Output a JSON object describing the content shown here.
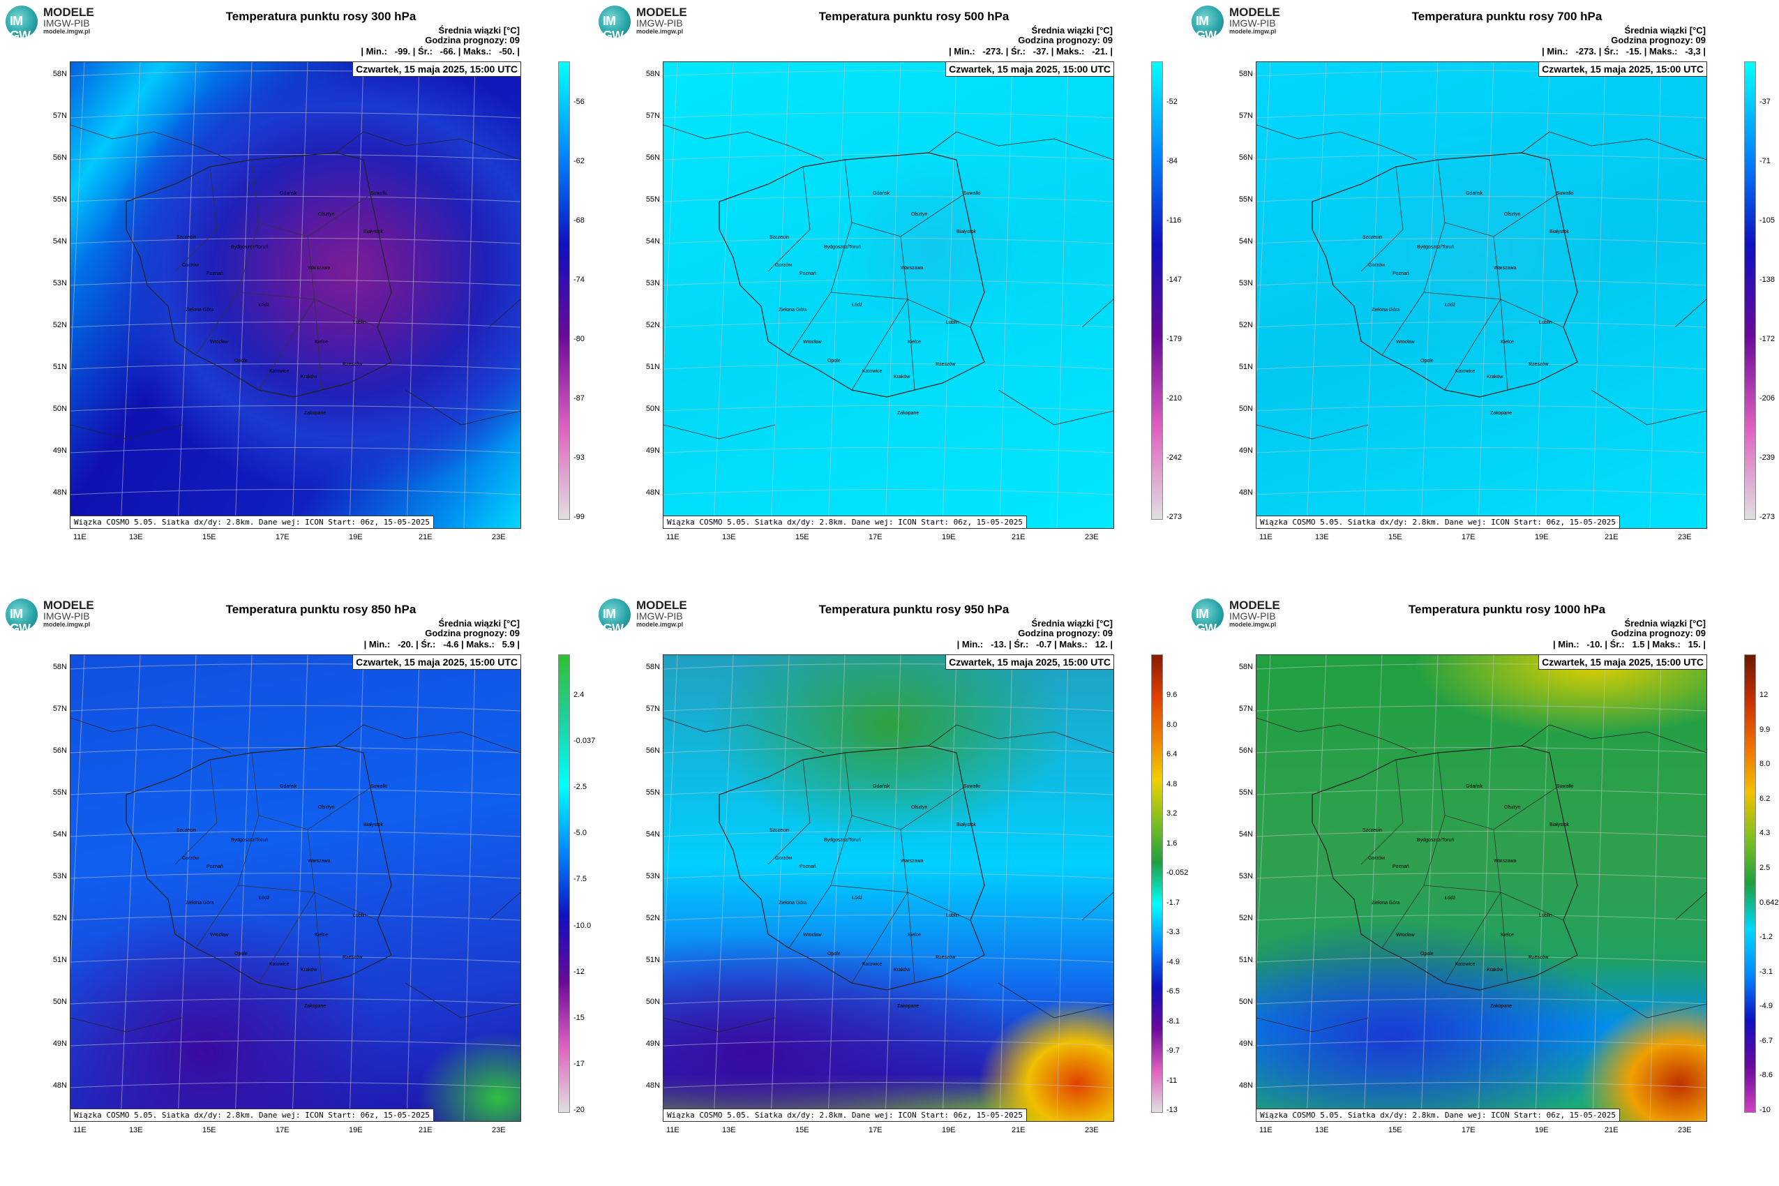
{
  "logo": {
    "line1": "MODELE",
    "line2": "IMGW-PIB",
    "line3": "modele.imgw.pl",
    "mark": "IM GW"
  },
  "common": {
    "info_line1": "Średnia wiązki [°C]",
    "info_line2": "Godzina prognozy: 09",
    "date": "Czwartek, 15 maja 2025, 15:00 UTC",
    "footer": "Wiązka COSMO 5.05. Siatka dx/dy: 2.8km. Dane wej: ICON Start: 06z, 15-05-2025",
    "lat_labels": [
      "58N",
      "57N",
      "56N",
      "55N",
      "54N",
      "53N",
      "52N",
      "51N",
      "50N",
      "49N",
      "48N"
    ],
    "lon_labels": [
      "11E",
      "13E",
      "15E",
      "17E",
      "19E",
      "21E",
      "23E"
    ]
  },
  "panels": [
    {
      "title": "Temperatura punktu rosy 300 hPa",
      "stats": "| Min.:   -99. | Śr.:   -66. | Maks.:   -50. |",
      "colorbar": {
        "colors": [
          "#00ffff",
          "#0088ff",
          "#1010c0",
          "#6a0a9a",
          "#e060c0",
          "#e0e0e0"
        ],
        "ticks": [
          "-56",
          "-62",
          "-68",
          "-74",
          "-80",
          "-87",
          "-93",
          "-99"
        ]
      }
    },
    {
      "title": "Temperatura punktu rosy 500 hPa",
      "stats": "| Min.:   -273. | Śr.:   -37. | Maks.:   -21. |",
      "colorbar": {
        "colors": [
          "#00ffff",
          "#0088ff",
          "#1010c0",
          "#6a0a9a",
          "#e060c0",
          "#e0e0e0"
        ],
        "ticks": [
          "-52",
          "-84",
          "-116",
          "-147",
          "-179",
          "-210",
          "-242",
          "-273"
        ]
      }
    },
    {
      "title": "Temperatura punktu rosy 700 hPa",
      "stats": "| Min.:   -273. | Śr.:   -15. | Maks.:   -3,3 |",
      "colorbar": {
        "colors": [
          "#00ffff",
          "#0088ff",
          "#1010c0",
          "#6a0a9a",
          "#e060c0",
          "#e0e0e0"
        ],
        "ticks": [
          "-37",
          "-71",
          "-105",
          "-138",
          "-172",
          "-206",
          "-239",
          "-273"
        ]
      }
    },
    {
      "title": "Temperatura punktu rosy 850 hPa",
      "stats": "| Min.:   -20. | Śr.:   -4.6 | Maks.:   5.9 |",
      "colorbar": {
        "colors": [
          "#30c030",
          "#20d0a0",
          "#00ffff",
          "#0088ff",
          "#1010c0",
          "#6a0a9a",
          "#e060c0",
          "#e0e0e0"
        ],
        "ticks": [
          "2.4",
          "-0.037",
          "-2.5",
          "-5.0",
          "-7.5",
          "-10.0",
          "-12",
          "-15",
          "-17",
          "-20"
        ]
      }
    },
    {
      "title": "Temperatura punktu rosy 950 hPa",
      "stats": "| Min.:   -13. | Śr.:   -0.7 | Maks.:   12. |",
      "colorbar": {
        "colors": [
          "#8a1a00",
          "#e04000",
          "#f08000",
          "#f0d000",
          "#80c020",
          "#20a040",
          "#00ffff",
          "#0088ff",
          "#1010c0",
          "#6a0a9a",
          "#e060c0",
          "#e0e0e0"
        ],
        "ticks": [
          "9.6",
          "8.0",
          "6.4",
          "4.8",
          "3.2",
          "1.6",
          "-0.052",
          "-1.7",
          "-3.3",
          "-4.9",
          "-6.5",
          "-8.1",
          "-9.7",
          "-11",
          "-13"
        ]
      }
    },
    {
      "title": "Temperatura punktu rosy 1000 hPa",
      "stats": "| Min.:   -10. | Śr.:   1.5 | Maks.:   15. |",
      "colorbar": {
        "colors": [
          "#6a1a00",
          "#c83000",
          "#f07000",
          "#f0c000",
          "#80c020",
          "#20a040",
          "#00d8ff",
          "#0088ff",
          "#1010c0",
          "#6a0a9a",
          "#d040c0"
        ],
        "ticks": [
          "12",
          "9.9",
          "8.0",
          "6.2",
          "4.3",
          "2.5",
          "0.642",
          "-1.2",
          "-3.1",
          "-4.9",
          "-6.7",
          "-8.6",
          "-10"
        ]
      }
    }
  ],
  "cities": [
    "Gdańsk",
    "Olsztyn",
    "Suwałki",
    "Szczecin",
    "Białystok",
    "Bydgoszcz/Toruń",
    "Gorzów",
    "Warszawa",
    "Poznań",
    "Zielona Góra",
    "Łódź",
    "Lublin",
    "Wrocław",
    "Kielce",
    "Opole",
    "Katowice",
    "Kraków",
    "Rzeszów",
    "Zakopane"
  ]
}
